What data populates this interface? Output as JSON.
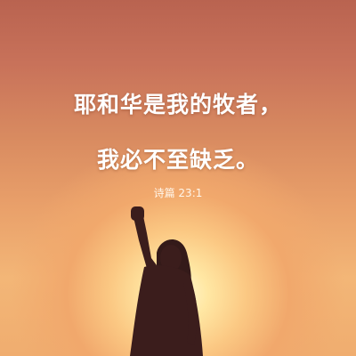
{
  "verse": {
    "line1": "耶和华是我的牧者，",
    "line2": "我必不至缺乏。"
  },
  "reference": "诗篇 23:1",
  "colors": {
    "sky_top": "#b96350",
    "sky_bottom": "#f0ad6f",
    "sun_glow": "#fff8d2",
    "silhouette": "#3b1d1c",
    "text": "#ffffff"
  }
}
